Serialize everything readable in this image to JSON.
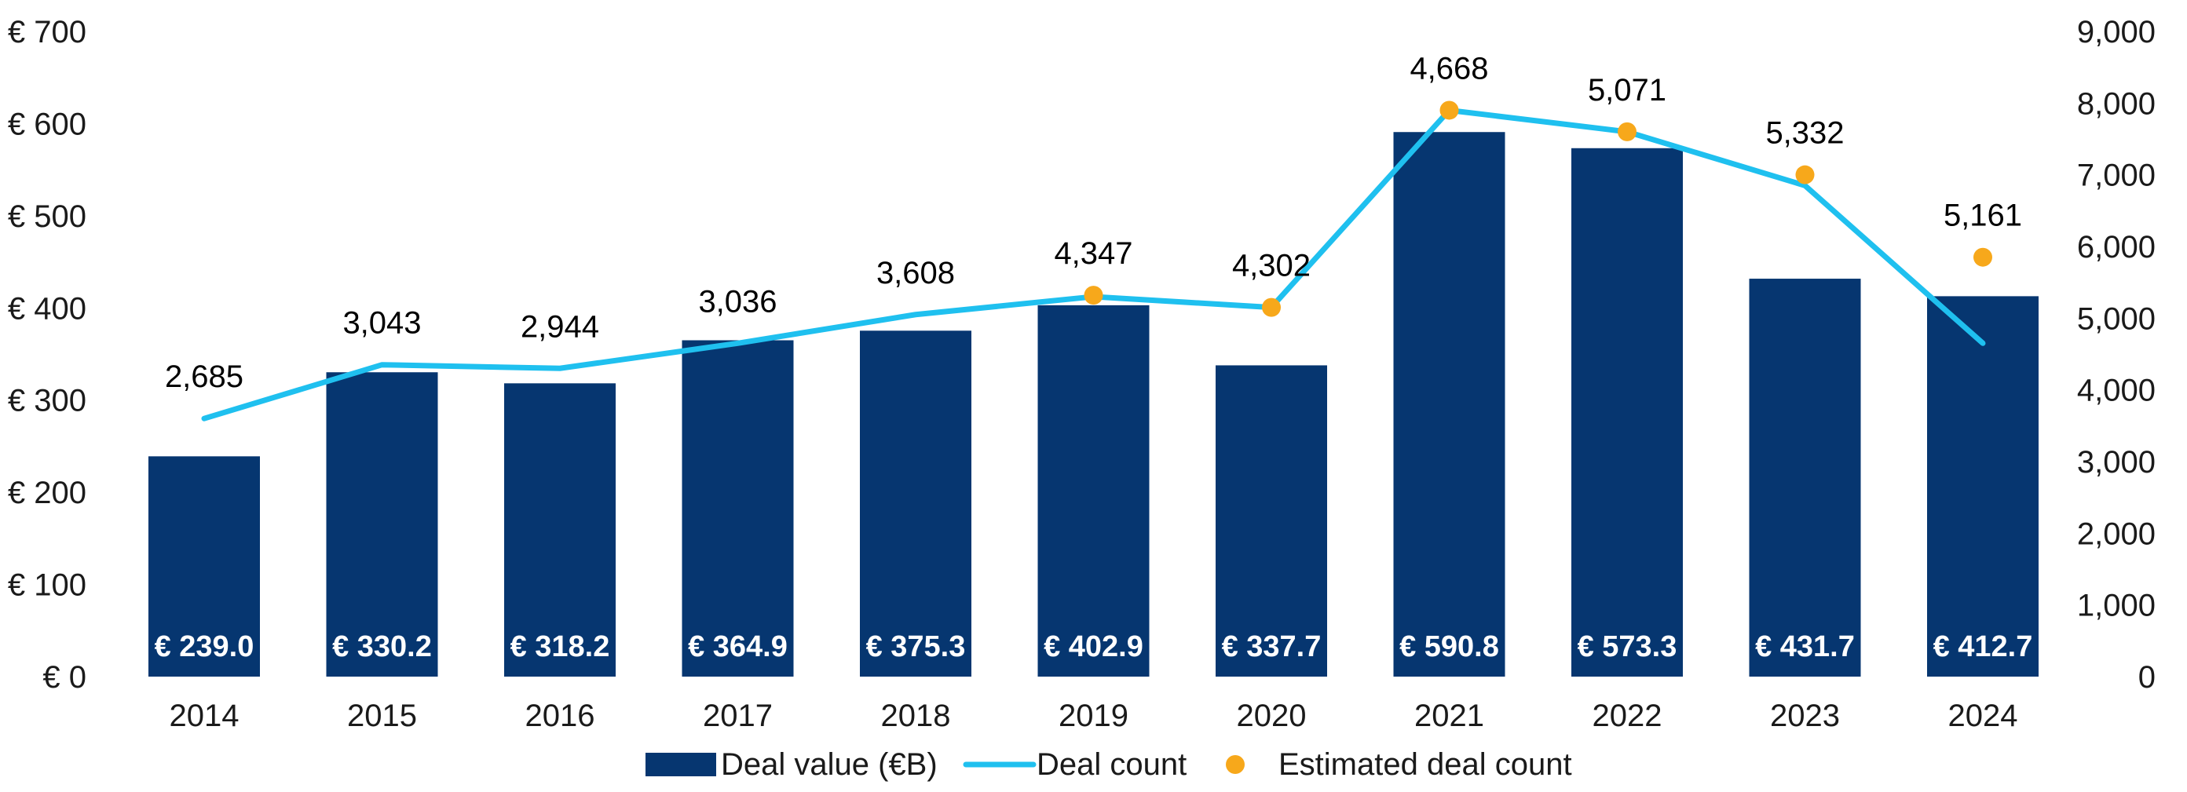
{
  "chart_data": {
    "type": "bar",
    "categories": [
      "2014",
      "2015",
      "2016",
      "2017",
      "2018",
      "2019",
      "2020",
      "2021",
      "2022",
      "2023",
      "2024"
    ],
    "series": [
      {
        "name": "Deal value (€B)",
        "type": "bar",
        "axis": "left",
        "color": "#063670",
        "values": [
          239.0,
          330.2,
          318.2,
          364.9,
          375.3,
          402.9,
          337.7,
          590.8,
          573.3,
          431.7,
          412.7
        ],
        "labels": [
          "€ 239.0",
          "€ 330.2",
          "€ 318.2",
          "€ 364.9",
          "€ 375.3",
          "€ 402.9",
          "€ 337.7",
          "€ 590.8",
          "€ 573.3",
          "€ 431.7",
          "€ 412.7"
        ]
      },
      {
        "name": "Deal count",
        "type": "line",
        "axis": "right",
        "color": "#1fc0ef",
        "values": [
          3600,
          4350,
          4300,
          4650,
          5050,
          5300,
          5150,
          7900,
          7600,
          6850,
          4650
        ]
      },
      {
        "name": "Estimated deal count",
        "type": "scatter",
        "axis": "right",
        "color": "#f7a81b",
        "values": [
          null,
          null,
          null,
          null,
          null,
          5320,
          5150,
          7900,
          7600,
          7000,
          5850
        ]
      }
    ],
    "count_labels": [
      "2,685",
      "3,043",
      "2,944",
      "3,036",
      "3,608",
      "4,347",
      "4,302",
      "4,668",
      "5,071",
      "5,332",
      "5,161"
    ],
    "y_left": {
      "range": [
        0,
        700
      ],
      "ticks": [
        0,
        100,
        200,
        300,
        400,
        500,
        600,
        700
      ],
      "tick_labels": [
        "€ 0",
        "€ 100",
        "€ 200",
        "€ 300",
        "€ 400",
        "€ 500",
        "€ 600",
        "€ 700"
      ]
    },
    "y_right": {
      "range": [
        0,
        9000
      ],
      "ticks": [
        0,
        1000,
        2000,
        3000,
        4000,
        5000,
        6000,
        7000,
        8000,
        9000
      ],
      "tick_labels": [
        "0",
        "1,000",
        "2,000",
        "3,000",
        "4,000",
        "5,000",
        "6,000",
        "7,000",
        "8,000",
        "9,000"
      ]
    },
    "grid": false,
    "legend_position": "bottom",
    "title": "",
    "xlabel": "",
    "ylabel": ""
  }
}
